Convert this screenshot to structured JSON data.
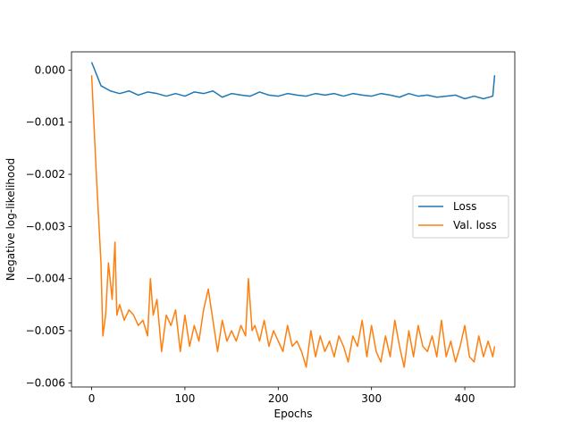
{
  "chart_data": {
    "type": "line",
    "title": "",
    "xlabel": "Epochs",
    "ylabel": "Negative log-likelihood",
    "xlim": [
      -21.6,
      453.6
    ],
    "ylim": [
      -0.00608,
      0.00035
    ],
    "xticks": [
      0,
      100,
      200,
      300,
      400
    ],
    "xtick_labels": [
      "0",
      "100",
      "200",
      "300",
      "400"
    ],
    "yticks": [
      0.0,
      -0.001,
      -0.002,
      -0.003,
      -0.004,
      -0.005,
      -0.006
    ],
    "ytick_labels": [
      "0.000",
      "−0.001",
      "−0.002",
      "−0.003",
      "−0.004",
      "−0.005",
      "−0.006"
    ],
    "grid": false,
    "legend_position": "center-right",
    "series": [
      {
        "name": "Loss",
        "color": "#1f77b4",
        "x": [
          0,
          10,
          20,
          30,
          40,
          50,
          60,
          70,
          80,
          90,
          100,
          110,
          120,
          130,
          140,
          150,
          160,
          170,
          180,
          190,
          200,
          210,
          220,
          230,
          240,
          250,
          260,
          270,
          280,
          290,
          300,
          310,
          320,
          330,
          340,
          350,
          360,
          370,
          380,
          390,
          400,
          410,
          420,
          430,
          432
        ],
        "y": [
          0.00015,
          -0.0003,
          -0.0004,
          -0.00045,
          -0.0004,
          -0.00048,
          -0.00042,
          -0.00045,
          -0.0005,
          -0.00045,
          -0.0005,
          -0.00042,
          -0.00045,
          -0.0004,
          -0.00052,
          -0.00045,
          -0.00048,
          -0.0005,
          -0.00042,
          -0.00048,
          -0.0005,
          -0.00045,
          -0.00048,
          -0.0005,
          -0.00045,
          -0.00048,
          -0.00045,
          -0.0005,
          -0.00045,
          -0.00048,
          -0.0005,
          -0.00045,
          -0.00048,
          -0.00052,
          -0.00045,
          -0.0005,
          -0.00048,
          -0.00052,
          -0.0005,
          -0.00048,
          -0.00055,
          -0.0005,
          -0.00055,
          -0.0005,
          -0.0001
        ]
      },
      {
        "name": "Val. loss",
        "color": "#ff7f0e",
        "x": [
          0,
          5,
          10,
          12,
          15,
          18,
          22,
          25,
          27,
          30,
          35,
          40,
          45,
          50,
          55,
          60,
          63,
          66,
          70,
          75,
          80,
          85,
          90,
          95,
          100,
          105,
          110,
          115,
          120,
          125,
          130,
          135,
          140,
          145,
          150,
          155,
          160,
          165,
          168,
          172,
          175,
          180,
          185,
          190,
          195,
          200,
          205,
          210,
          215,
          220,
          225,
          230,
          235,
          240,
          245,
          250,
          255,
          260,
          265,
          270,
          275,
          280,
          285,
          290,
          295,
          300,
          305,
          310,
          315,
          320,
          325,
          330,
          335,
          340,
          345,
          350,
          355,
          360,
          365,
          370,
          375,
          380,
          385,
          390,
          395,
          400,
          405,
          410,
          415,
          420,
          425,
          430,
          432
        ],
        "y": [
          -0.0001,
          -0.002,
          -0.0037,
          -0.0051,
          -0.0047,
          -0.0037,
          -0.0044,
          -0.0033,
          -0.0047,
          -0.0045,
          -0.0048,
          -0.0046,
          -0.0047,
          -0.0049,
          -0.0048,
          -0.0051,
          -0.004,
          -0.0047,
          -0.0044,
          -0.0054,
          -0.0047,
          -0.0049,
          -0.0046,
          -0.0054,
          -0.0047,
          -0.0053,
          -0.0049,
          -0.0052,
          -0.0046,
          -0.0042,
          -0.0048,
          -0.0054,
          -0.0048,
          -0.0052,
          -0.005,
          -0.0052,
          -0.0049,
          -0.0051,
          -0.004,
          -0.005,
          -0.0049,
          -0.0052,
          -0.0048,
          -0.0053,
          -0.005,
          -0.0052,
          -0.0054,
          -0.0049,
          -0.0053,
          -0.0052,
          -0.0054,
          -0.0057,
          -0.005,
          -0.0055,
          -0.0051,
          -0.0054,
          -0.0052,
          -0.0055,
          -0.0051,
          -0.0053,
          -0.0056,
          -0.0051,
          -0.0053,
          -0.0048,
          -0.0055,
          -0.0049,
          -0.0054,
          -0.0056,
          -0.0051,
          -0.0055,
          -0.0048,
          -0.0053,
          -0.0057,
          -0.005,
          -0.0055,
          -0.0049,
          -0.0053,
          -0.0054,
          -0.0051,
          -0.0055,
          -0.0048,
          -0.0055,
          -0.0052,
          -0.0056,
          -0.0053,
          -0.0049,
          -0.0055,
          -0.0056,
          -0.0051,
          -0.0055,
          -0.0052,
          -0.0055,
          -0.0053
        ]
      }
    ]
  }
}
